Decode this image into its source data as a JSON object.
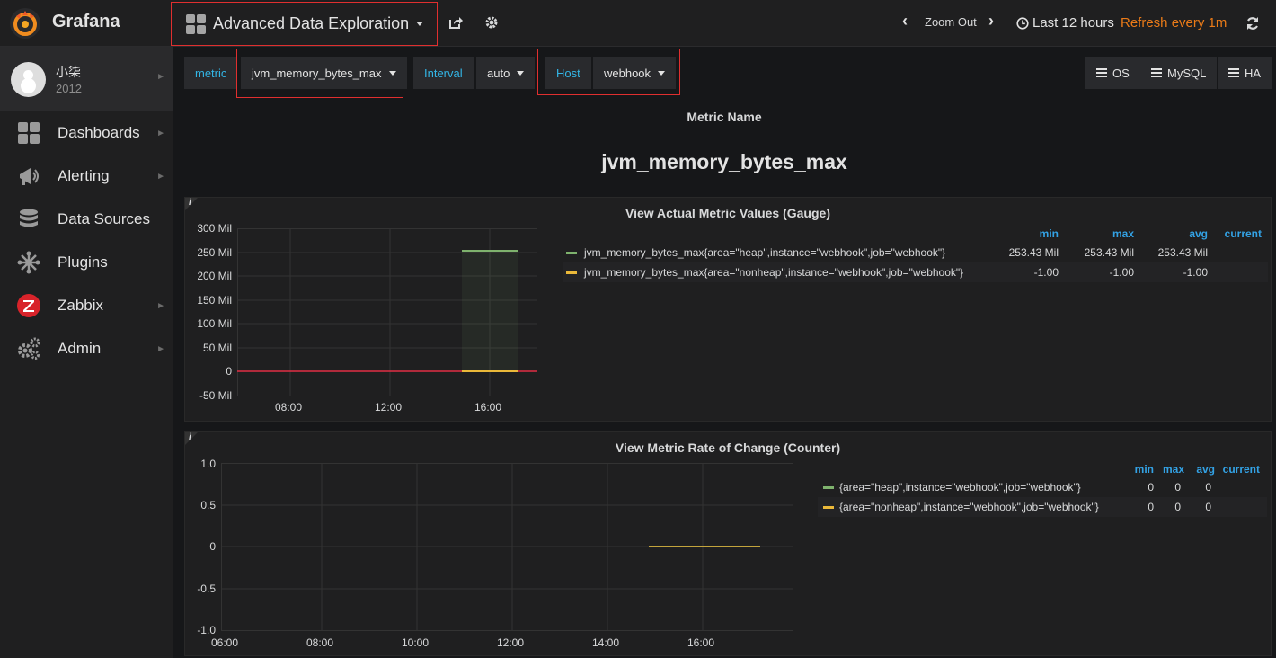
{
  "app": {
    "brand": "Grafana"
  },
  "header": {
    "dashboard_title": "Advanced Data Exploration",
    "zoom_out_label": "Zoom Out",
    "time_range": "Last 12 hours",
    "refresh_label": "Refresh every 1m"
  },
  "user": {
    "name": "小柒",
    "org": "2012"
  },
  "sidebar": {
    "items": [
      {
        "label": "Dashboards",
        "icon": "dashboards-icon",
        "has_arrow": true
      },
      {
        "label": "Alerting",
        "icon": "alerting-icon",
        "has_arrow": true
      },
      {
        "label": "Data Sources",
        "icon": "data-sources-icon",
        "has_arrow": false
      },
      {
        "label": "Plugins",
        "icon": "plugins-icon",
        "has_arrow": false
      },
      {
        "label": "Zabbix",
        "icon": "zabbix-icon",
        "has_arrow": true
      },
      {
        "label": "Admin",
        "icon": "admin-icon",
        "has_arrow": true
      }
    ]
  },
  "variables": {
    "metric_label": "metric",
    "metric_value": "jvm_memory_bytes_max",
    "interval_label": "Interval",
    "interval_value": "auto",
    "host_label": "Host",
    "host_value": "webhook"
  },
  "dashboard_links": [
    "OS",
    "MySQL",
    "HA"
  ],
  "metric_name_panel": {
    "label": "Metric Name",
    "value": "jvm_memory_bytes_max"
  },
  "colors": {
    "accent": "#33b5e5",
    "refresh": "#eb7b18",
    "series_green": "#7eb26d",
    "series_yellow": "#eab839",
    "threshold_red": "#e02f44",
    "highlight": "#e02f2f"
  },
  "panels": [
    {
      "title": "View Actual Metric Values (Gauge)",
      "legend": {
        "columns": [
          "min",
          "max",
          "avg",
          "current"
        ],
        "rows": [
          {
            "name": "jvm_memory_bytes_max{area=\"heap\",instance=\"webhook\",job=\"webhook\"}",
            "min": "253.43 Mil",
            "max": "253.43 Mil",
            "avg": "253.43 Mil",
            "current": ""
          },
          {
            "name": "jvm_memory_bytes_max{area=\"nonheap\",instance=\"webhook\",job=\"webhook\"}",
            "min": "-1.00",
            "max": "-1.00",
            "avg": "-1.00",
            "current": ""
          }
        ]
      },
      "y_ticks": [
        "300 Mil",
        "250 Mil",
        "200 Mil",
        "150 Mil",
        "100 Mil",
        "50 Mil",
        "0",
        "-50 Mil"
      ],
      "x_ticks": [
        "08:00",
        "12:00",
        "16:00"
      ]
    },
    {
      "title": "View Metric Rate of Change (Counter)",
      "legend": {
        "columns": [
          "min",
          "max",
          "avg",
          "current"
        ],
        "rows": [
          {
            "name": "{area=\"heap\",instance=\"webhook\",job=\"webhook\"}",
            "min": "0",
            "max": "0",
            "avg": "0",
            "current": ""
          },
          {
            "name": "{area=\"nonheap\",instance=\"webhook\",job=\"webhook\"}",
            "min": "0",
            "max": "0",
            "avg": "0",
            "current": ""
          }
        ]
      },
      "y_ticks": [
        "1.0",
        "0.5",
        "0",
        "-0.5",
        "-1.0"
      ],
      "x_ticks": [
        "06:00",
        "08:00",
        "10:00",
        "12:00",
        "14:00",
        "16:00"
      ]
    }
  ],
  "chart_data": [
    {
      "type": "line",
      "title": "View Actual Metric Values (Gauge)",
      "x_range": [
        "05:00",
        "17:45"
      ],
      "ylim": [
        -50000000,
        300000000
      ],
      "threshold": 0,
      "series": [
        {
          "name": "jvm_memory_bytes_max{area=\"heap\",instance=\"webhook\",job=\"webhook\"}",
          "x": [
            "14:55",
            "17:10"
          ],
          "values": [
            253430000,
            253430000
          ]
        },
        {
          "name": "jvm_memory_bytes_max{area=\"nonheap\",instance=\"webhook\",job=\"webhook\"}",
          "x": [
            "14:55",
            "17:10"
          ],
          "values": [
            -1,
            -1
          ]
        }
      ]
    },
    {
      "type": "line",
      "title": "View Metric Rate of Change (Counter)",
      "x_range": [
        "05:45",
        "17:55"
      ],
      "ylim": [
        -1.0,
        1.0
      ],
      "series": [
        {
          "name": "{area=\"heap\",instance=\"webhook\",job=\"webhook\"}",
          "x": [
            "14:50",
            "17:10"
          ],
          "values": [
            0,
            0
          ]
        },
        {
          "name": "{area=\"nonheap\",instance=\"webhook\",job=\"webhook\"}",
          "x": [
            "14:50",
            "17:10"
          ],
          "values": [
            0,
            0
          ]
        }
      ]
    }
  ]
}
